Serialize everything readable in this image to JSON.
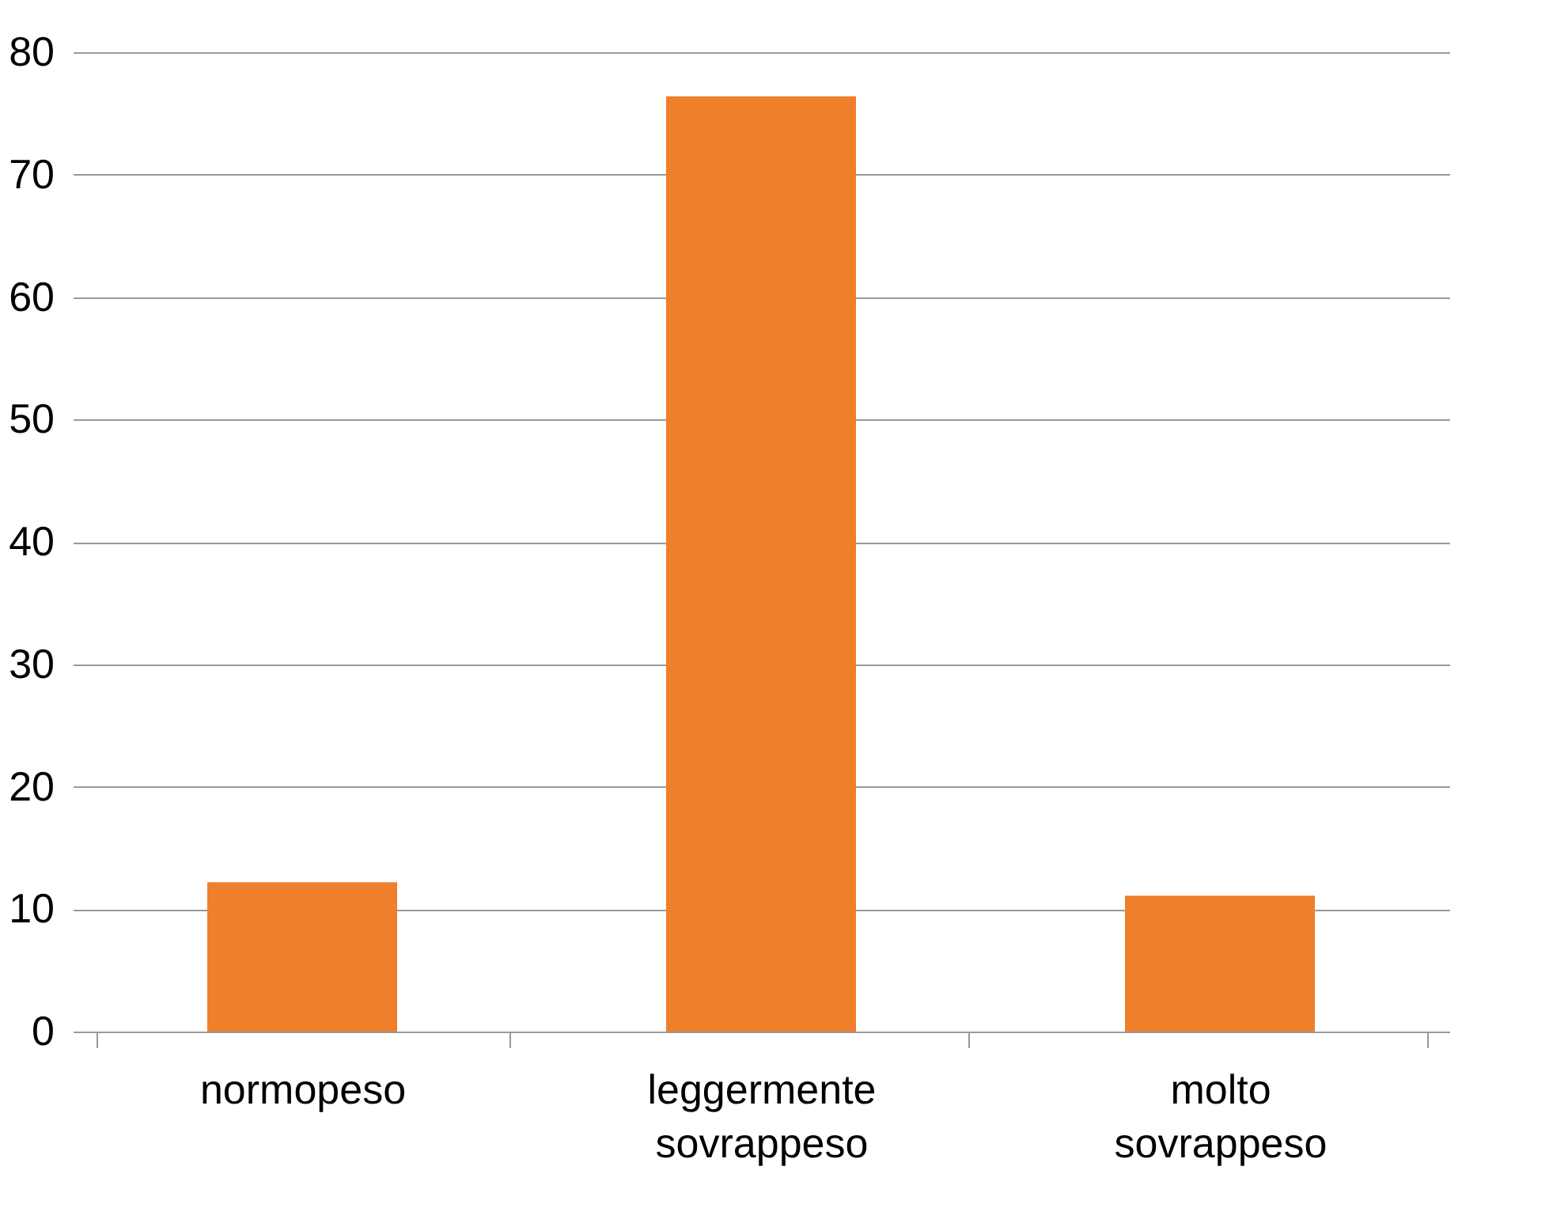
{
  "chart_data": {
    "type": "bar",
    "categories": [
      "normopeso",
      "leggermente sovrappeso",
      "molto sovrappeso"
    ],
    "values": [
      12.2,
      76.4,
      11.1
    ],
    "color": "#f07f2c",
    "ylim": [
      0,
      80
    ],
    "yticks": [
      0,
      10,
      20,
      30,
      40,
      50,
      60,
      70,
      80
    ],
    "grid": "y"
  }
}
